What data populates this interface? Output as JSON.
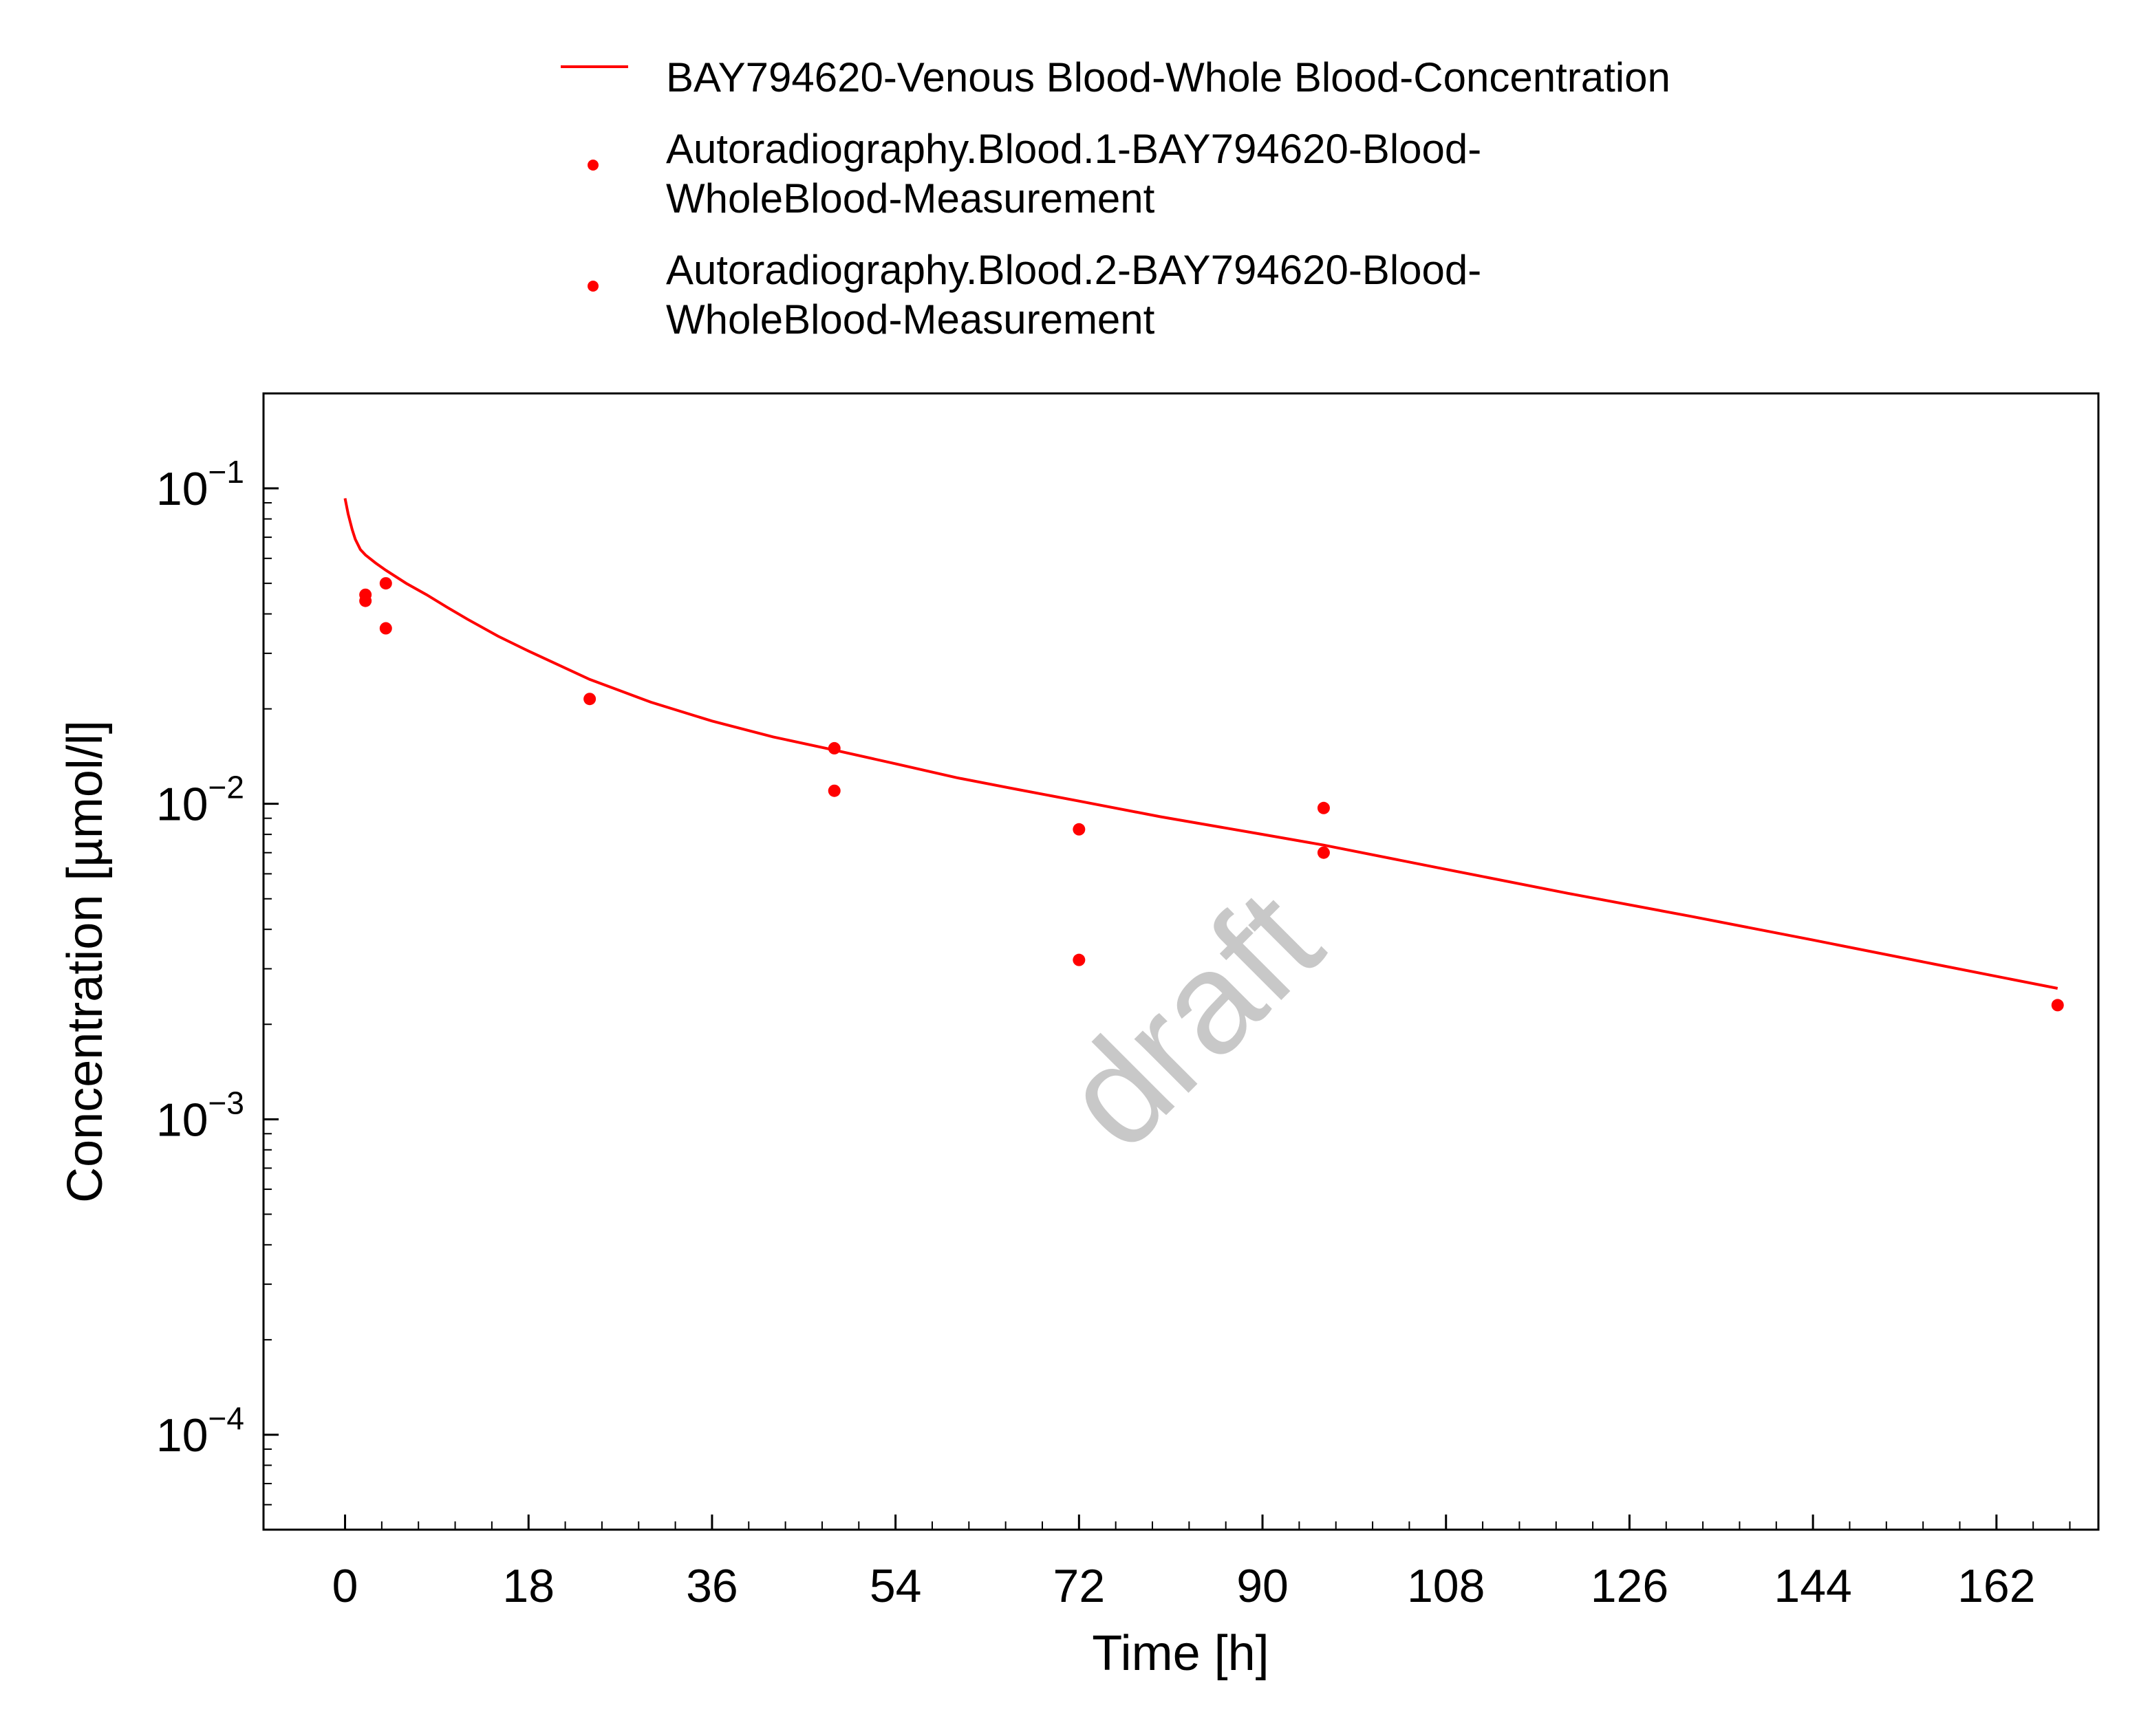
{
  "chart_data": {
    "type": "line",
    "xlabel": "Time [h]",
    "ylabel": "Concentration [µmol/l]",
    "x_scale": "linear",
    "y_scale": "log",
    "xlim": [
      -8,
      172
    ],
    "ylim": [
      5e-05,
      0.2
    ],
    "x_ticks": [
      0,
      18,
      36,
      54,
      72,
      90,
      108,
      126,
      144,
      162
    ],
    "y_ticks": [
      {
        "value": 0.1,
        "base": "10",
        "exp": "−1"
      },
      {
        "value": 0.01,
        "base": "10",
        "exp": "−2"
      },
      {
        "value": 0.001,
        "base": "10",
        "exp": "−3"
      },
      {
        "value": 0.0001,
        "base": "10",
        "exp": "−4"
      }
    ],
    "grid": false,
    "legend_position": "top",
    "watermark": "draft",
    "series": [
      {
        "name": "BAY794620-Venous Blood-Whole Blood-Concentration",
        "kind": "line",
        "color": "#ff0000",
        "points": [
          [
            0,
            0.093
          ],
          [
            0.3,
            0.083
          ],
          [
            0.7,
            0.074
          ],
          [
            1.0,
            0.069
          ],
          [
            1.5,
            0.064
          ],
          [
            2,
            0.0615
          ],
          [
            3,
            0.058
          ],
          [
            4,
            0.055
          ],
          [
            6,
            0.05
          ],
          [
            8,
            0.046
          ],
          [
            10,
            0.042
          ],
          [
            12,
            0.0385
          ],
          [
            15,
            0.034
          ],
          [
            18,
            0.0305
          ],
          [
            21,
            0.0275
          ],
          [
            24,
            0.0248
          ],
          [
            30,
            0.021
          ],
          [
            36,
            0.0183
          ],
          [
            42,
            0.0163
          ],
          [
            48,
            0.0148
          ],
          [
            54,
            0.0134
          ],
          [
            60,
            0.0121
          ],
          [
            66,
            0.0111
          ],
          [
            72,
            0.0102
          ],
          [
            80,
            0.0091
          ],
          [
            90,
            0.008
          ],
          [
            96,
            0.0074
          ],
          [
            108,
            0.0062
          ],
          [
            120,
            0.0052
          ],
          [
            132,
            0.0044
          ],
          [
            144,
            0.0037
          ],
          [
            156,
            0.0031
          ],
          [
            168,
            0.0026
          ]
        ]
      },
      {
        "name": "Autoradiography.Blood.1-BAY794620-Blood-WholeBlood-Measurement",
        "legend_lines": [
          "Autoradiography.Blood.1-BAY794620-Blood-",
          "WholeBlood-Measurement"
        ],
        "kind": "scatter",
        "color": "#ff0000",
        "points": [
          [
            2,
            0.046
          ],
          [
            4,
            0.05
          ],
          [
            24,
            0.0215
          ],
          [
            48,
            0.015
          ],
          [
            72,
            0.0083
          ],
          [
            96,
            0.0097
          ]
        ]
      },
      {
        "name": "Autoradiography.Blood.2-BAY794620-Blood-WholeBlood-Measurement",
        "legend_lines": [
          "Autoradiography.Blood.2-BAY794620-Blood-",
          "WholeBlood-Measurement"
        ],
        "kind": "scatter",
        "color": "#ff0000",
        "points": [
          [
            2,
            0.044
          ],
          [
            4,
            0.036
          ],
          [
            48,
            0.011
          ],
          [
            72,
            0.0032
          ],
          [
            96,
            0.007
          ],
          [
            168,
            0.0023
          ]
        ]
      }
    ]
  }
}
